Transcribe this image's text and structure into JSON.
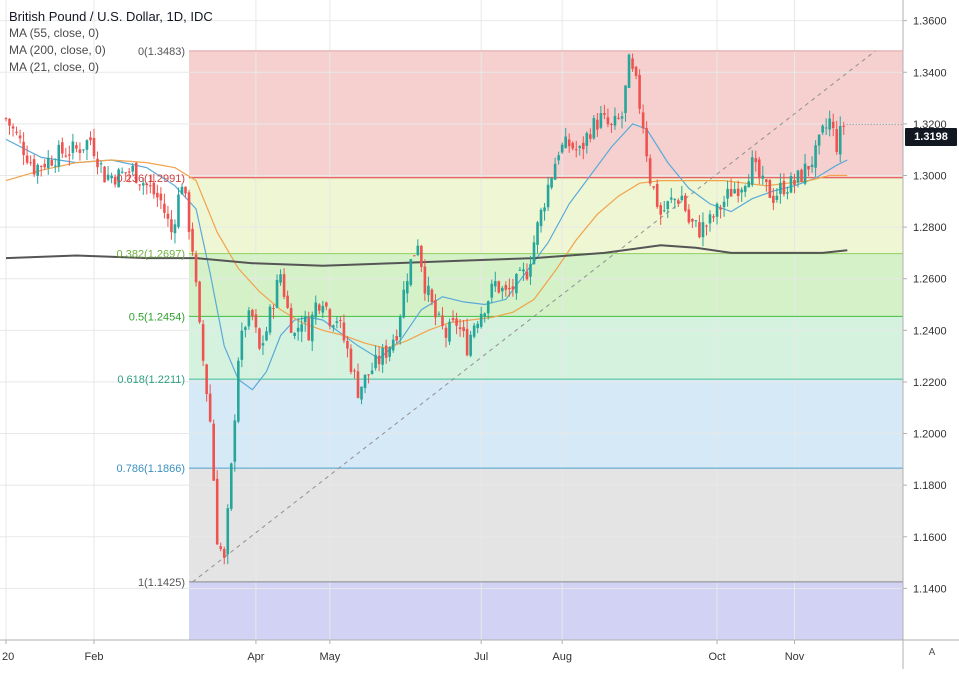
{
  "legend": {
    "title": "British Pound / U.S. Dollar, 1D, IDC",
    "indicators": [
      "MA (55, close, 0)",
      "MA (200, close, 0)",
      "MA (21, close, 0)"
    ]
  },
  "current_price": "1.3198",
  "auto_label": "A",
  "colors": {
    "up": "#26a69a",
    "down": "#ef5350",
    "ma21": "#5aaad8",
    "ma55": "#f2a34b",
    "ma200": "#555555"
  },
  "chart_data": {
    "type": "candlestick",
    "title": "British Pound / U.S. Dollar, 1D, IDC",
    "ylim": [
      1.12,
      1.368
    ],
    "y_ticks": [
      "1.3600",
      "1.3400",
      "1.3200",
      "1.3000",
      "1.2800",
      "1.2600",
      "1.2400",
      "1.2200",
      "1.2000",
      "1.1800",
      "1.1600",
      "1.1400"
    ],
    "x_ticks": [
      {
        "label": "20",
        "day": 0
      },
      {
        "label": "Feb",
        "day": 25
      },
      {
        "label": "Apr",
        "day": 71
      },
      {
        "label": "May",
        "day": 92
      },
      {
        "label": "Jul",
        "day": 135
      },
      {
        "label": "Aug",
        "day": 158
      },
      {
        "label": "Oct",
        "day": 202
      },
      {
        "label": "Nov",
        "day": 224
      }
    ],
    "total_days": 248,
    "fib_levels": [
      {
        "label": "0(1.3483)",
        "value": 1.3483,
        "fill": "#f5d0cf",
        "line": "#e0a0a0",
        "label_color": "#555555"
      },
      {
        "label": "0.236(1.2991)",
        "value": 1.2991,
        "fill": "#eef6d4",
        "line": "#e04040",
        "label_color": "#d04040"
      },
      {
        "label": "0.382(1.2697)",
        "value": 1.2697,
        "fill": "#d4f1c8",
        "line": "#90d060",
        "label_color": "#70b040"
      },
      {
        "label": "0.5(1.2454)",
        "value": 1.2454,
        "fill": "#d5f2de",
        "line": "#40c040",
        "label_color": "#30a030"
      },
      {
        "label": "0.618(1.2211)",
        "value": 1.2211,
        "fill": "#d6e9f6",
        "line": "#40c090",
        "label_color": "#30a080"
      },
      {
        "label": "0.786(1.1866)",
        "value": 1.1866,
        "fill": "#e4e4e4",
        "line": "#4aa0d0",
        "label_color": "#3a90c0"
      },
      {
        "label": "1(1.1425)",
        "value": 1.1425,
        "fill": "#d2d2f4",
        "line": "#888888",
        "label_color": "#555555"
      }
    ],
    "fib_start_day": 52,
    "trend_line": {
      "from": {
        "day": 53,
        "value": 1.1425
      },
      "to": {
        "day": 247,
        "value": 1.3483
      }
    },
    "close_path": [
      [
        0,
        1.322
      ],
      [
        4,
        1.313
      ],
      [
        8,
        1.303
      ],
      [
        12,
        1.306
      ],
      [
        16,
        1.309
      ],
      [
        20,
        1.31
      ],
      [
        24,
        1.314
      ],
      [
        28,
        1.3
      ],
      [
        32,
        1.3
      ],
      [
        36,
        1.302
      ],
      [
        40,
        1.296
      ],
      [
        44,
        1.29
      ],
      [
        47,
        1.278
      ],
      [
        50,
        1.298
      ],
      [
        53,
        1.272
      ],
      [
        55,
        1.24
      ],
      [
        58,
        1.205
      ],
      [
        60,
        1.16
      ],
      [
        62,
        1.15
      ],
      [
        64,
        1.186
      ],
      [
        66,
        1.23
      ],
      [
        68,
        1.243
      ],
      [
        70,
        1.245
      ],
      [
        72,
        1.232
      ],
      [
        74,
        1.24
      ],
      [
        76,
        1.252
      ],
      [
        78,
        1.262
      ],
      [
        80,
        1.248
      ],
      [
        82,
        1.238
      ],
      [
        84,
        1.245
      ],
      [
        86,
        1.24
      ],
      [
        88,
        1.25
      ],
      [
        90,
        1.253
      ],
      [
        92,
        1.245
      ],
      [
        94,
        1.245
      ],
      [
        97,
        1.232
      ],
      [
        100,
        1.217
      ],
      [
        104,
        1.225
      ],
      [
        108,
        1.232
      ],
      [
        111,
        1.24
      ],
      [
        114,
        1.262
      ],
      [
        117,
        1.275
      ],
      [
        119,
        1.258
      ],
      [
        122,
        1.245
      ],
      [
        125,
        1.238
      ],
      [
        128,
        1.243
      ],
      [
        131,
        1.234
      ],
      [
        133,
        1.243
      ],
      [
        136,
        1.25
      ],
      [
        139,
        1.258
      ],
      [
        142,
        1.254
      ],
      [
        145,
        1.258
      ],
      [
        148,
        1.263
      ],
      [
        151,
        1.28
      ],
      [
        154,
        1.296
      ],
      [
        157,
        1.31
      ],
      [
        160,
        1.312
      ],
      [
        163,
        1.309
      ],
      [
        166,
        1.318
      ],
      [
        169,
        1.322
      ],
      [
        172,
        1.318
      ],
      [
        175,
        1.323
      ],
      [
        177,
        1.343
      ],
      [
        179,
        1.335
      ],
      [
        181,
        1.32
      ],
      [
        183,
        1.299
      ],
      [
        186,
        1.285
      ],
      [
        189,
        1.29
      ],
      [
        192,
        1.292
      ],
      [
        194,
        1.282
      ],
      [
        197,
        1.279
      ],
      [
        200,
        1.282
      ],
      [
        203,
        1.288
      ],
      [
        206,
        1.294
      ],
      [
        209,
        1.297
      ],
      [
        212,
        1.304
      ],
      [
        215,
        1.296
      ],
      [
        218,
        1.292
      ],
      [
        221,
        1.296
      ],
      [
        224,
        1.297
      ],
      [
        227,
        1.302
      ],
      [
        230,
        1.308
      ],
      [
        232,
        1.316
      ],
      [
        234,
        1.321
      ],
      [
        236,
        1.312
      ],
      [
        238,
        1.3198
      ]
    ],
    "series": [
      {
        "name": "MA (21, close, 0)",
        "color": "#5aaad8",
        "points": [
          [
            0,
            1.314
          ],
          [
            10,
            1.307
          ],
          [
            20,
            1.305
          ],
          [
            30,
            1.306
          ],
          [
            40,
            1.303
          ],
          [
            48,
            1.296
          ],
          [
            54,
            1.287
          ],
          [
            58,
            1.262
          ],
          [
            62,
            1.234
          ],
          [
            66,
            1.221
          ],
          [
            70,
            1.217
          ],
          [
            74,
            1.224
          ],
          [
            78,
            1.238
          ],
          [
            82,
            1.244
          ],
          [
            86,
            1.245
          ],
          [
            90,
            1.244
          ],
          [
            96,
            1.238
          ],
          [
            100,
            1.234
          ],
          [
            106,
            1.229
          ],
          [
            112,
            1.236
          ],
          [
            118,
            1.248
          ],
          [
            124,
            1.253
          ],
          [
            130,
            1.251
          ],
          [
            136,
            1.25
          ],
          [
            142,
            1.252
          ],
          [
            148,
            1.263
          ],
          [
            154,
            1.274
          ],
          [
            160,
            1.289
          ],
          [
            166,
            1.3
          ],
          [
            172,
            1.311
          ],
          [
            178,
            1.32
          ],
          [
            182,
            1.318
          ],
          [
            188,
            1.305
          ],
          [
            194,
            1.295
          ],
          [
            200,
            1.289
          ],
          [
            206,
            1.286
          ],
          [
            212,
            1.291
          ],
          [
            218,
            1.294
          ],
          [
            224,
            1.296
          ],
          [
            230,
            1.299
          ],
          [
            236,
            1.304
          ],
          [
            239,
            1.306
          ]
        ]
      },
      {
        "name": "MA (55, close, 0)",
        "color": "#f2a34b",
        "points": [
          [
            0,
            1.298
          ],
          [
            10,
            1.302
          ],
          [
            20,
            1.305
          ],
          [
            30,
            1.306
          ],
          [
            40,
            1.305
          ],
          [
            48,
            1.303
          ],
          [
            54,
            1.298
          ],
          [
            60,
            1.278
          ],
          [
            66,
            1.264
          ],
          [
            72,
            1.255
          ],
          [
            78,
            1.248
          ],
          [
            84,
            1.243
          ],
          [
            90,
            1.24
          ],
          [
            96,
            1.238
          ],
          [
            102,
            1.235
          ],
          [
            108,
            1.233
          ],
          [
            114,
            1.236
          ],
          [
            120,
            1.24
          ],
          [
            126,
            1.243
          ],
          [
            132,
            1.244
          ],
          [
            138,
            1.245
          ],
          [
            144,
            1.247
          ],
          [
            150,
            1.252
          ],
          [
            156,
            1.263
          ],
          [
            162,
            1.275
          ],
          [
            168,
            1.285
          ],
          [
            174,
            1.292
          ],
          [
            180,
            1.297
          ],
          [
            186,
            1.298
          ],
          [
            192,
            1.298
          ],
          [
            198,
            1.298
          ],
          [
            204,
            1.298
          ],
          [
            210,
            1.297
          ],
          [
            216,
            1.296
          ],
          [
            222,
            1.297
          ],
          [
            228,
            1.298
          ],
          [
            234,
            1.3
          ],
          [
            239,
            1.3
          ]
        ]
      },
      {
        "name": "MA (200, close, 0)",
        "color": "#555555",
        "points": [
          [
            0,
            1.268
          ],
          [
            20,
            1.269
          ],
          [
            40,
            1.268
          ],
          [
            54,
            1.268
          ],
          [
            70,
            1.266
          ],
          [
            90,
            1.265
          ],
          [
            110,
            1.266
          ],
          [
            130,
            1.267
          ],
          [
            150,
            1.268
          ],
          [
            170,
            1.27
          ],
          [
            186,
            1.273
          ],
          [
            196,
            1.272
          ],
          [
            206,
            1.27
          ],
          [
            220,
            1.27
          ],
          [
            232,
            1.27
          ],
          [
            239,
            1.271
          ]
        ]
      }
    ]
  }
}
